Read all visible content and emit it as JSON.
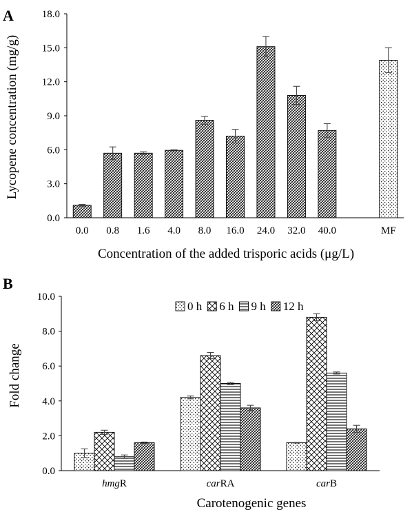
{
  "chart_data": [
    {
      "panel": "A",
      "type": "bar",
      "xlabel": "Concentration of the added trisporic acids (μg/L)",
      "ylabel": "Lycopene concentration (mg/g)",
      "ylim": [
        0,
        18
      ],
      "yticks": [
        "0.0",
        "3.0",
        "6.0",
        "9.0",
        "12.0",
        "15.0",
        "18.0"
      ],
      "categories": [
        "0.0",
        "0.8",
        "1.6",
        "4.0",
        "8.0",
        "16.0",
        "24.0",
        "32.0",
        "40.0",
        "",
        "MF"
      ],
      "values": [
        1.1,
        5.7,
        5.7,
        5.95,
        8.6,
        7.2,
        15.1,
        10.8,
        7.7,
        null,
        13.9
      ],
      "errors": [
        0.08,
        0.55,
        0.12,
        0.05,
        0.35,
        0.6,
        0.9,
        0.8,
        0.6,
        null,
        1.1
      ],
      "patterns": [
        "dense",
        "dense",
        "dense",
        "dense",
        "dense",
        "dense",
        "dense",
        "dense",
        "dense",
        "none",
        "dots"
      ],
      "grid": false
    },
    {
      "panel": "B",
      "type": "bar",
      "xlabel": "Carotenogenic genes",
      "ylabel": "Fold change",
      "ylim": [
        0,
        10
      ],
      "yticks": [
        "0.0",
        "2.0",
        "4.0",
        "6.0",
        "8.0",
        "10.0"
      ],
      "categories": [
        {
          "italic": "hmg",
          "normal": "R"
        },
        {
          "italic": "car",
          "normal": "RA"
        },
        {
          "italic": "car",
          "normal": "B"
        }
      ],
      "series": [
        {
          "name": "0 h",
          "pattern": "dots",
          "values": [
            1.0,
            4.2,
            1.6
          ],
          "errors": [
            0.25,
            0.08,
            0.02
          ]
        },
        {
          "name": "6 h",
          "pattern": "cross",
          "values": [
            2.2,
            6.6,
            8.8
          ],
          "errors": [
            0.12,
            0.18,
            0.2
          ]
        },
        {
          "name": "9 h",
          "pattern": "hlines",
          "values": [
            0.8,
            5.0,
            5.6
          ],
          "errors": [
            0.1,
            0.06,
            0.06
          ]
        },
        {
          "name": "12 h",
          "pattern": "dense",
          "values": [
            1.6,
            3.6,
            2.4
          ],
          "errors": [
            0.04,
            0.15,
            0.2
          ]
        }
      ],
      "legend": "top",
      "grid": false
    }
  ],
  "panel_labels": [
    "A",
    "B"
  ]
}
